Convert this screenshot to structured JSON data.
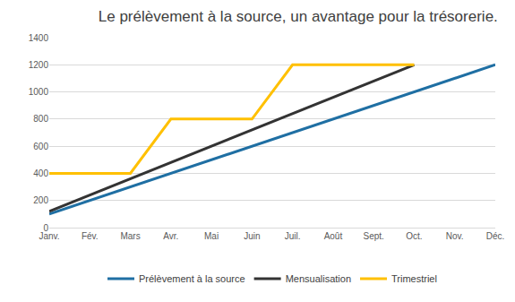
{
  "chart_data": {
    "type": "line",
    "title": "Le prélèvement à la source, un avantage pour la trésorerie.",
    "categories": [
      "Janv.",
      "Fév.",
      "Mars",
      "Avr.",
      "Mai",
      "Juin",
      "Juil.",
      "Août",
      "Sept.",
      "Oct.",
      "Nov.",
      "Déc."
    ],
    "series": [
      {
        "name": "Prélèvement à la source",
        "color": "#1f6fa3",
        "values": [
          100,
          200,
          300,
          400,
          500,
          600,
          700,
          800,
          900,
          1000,
          1100,
          1200
        ]
      },
      {
        "name": "Mensualisation",
        "color": "#333333",
        "values": [
          120,
          240,
          360,
          480,
          600,
          720,
          840,
          960,
          1080,
          1200,
          null,
          null
        ]
      },
      {
        "name": "Trimestriel",
        "color": "#ffc000",
        "values": [
          400,
          400,
          400,
          800,
          800,
          800,
          1200,
          1200,
          1200,
          1200,
          null,
          null
        ]
      }
    ],
    "ylim": [
      0,
      1400
    ],
    "yticks": [
      0,
      200,
      400,
      600,
      800,
      1000,
      1200,
      1400
    ],
    "grid": true,
    "legend": "bottom"
  }
}
